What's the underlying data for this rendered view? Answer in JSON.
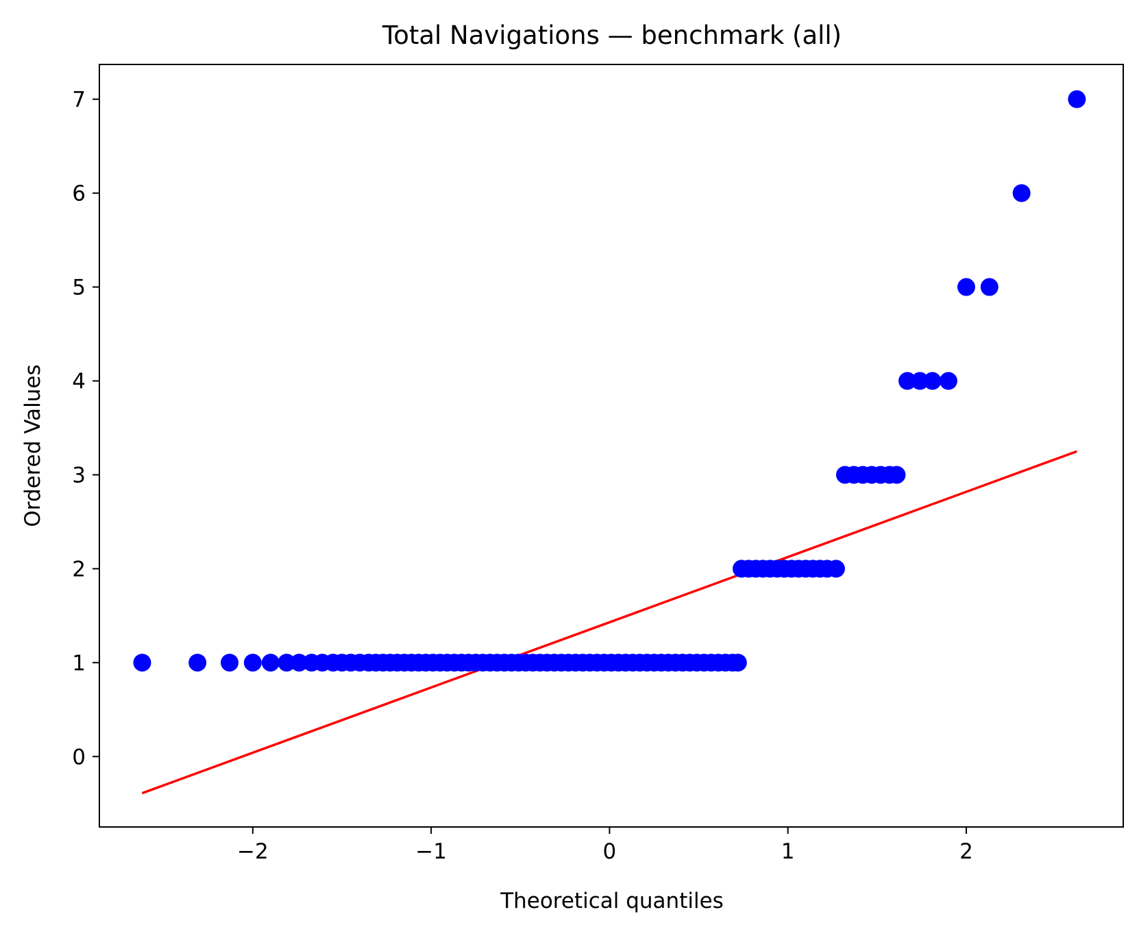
{
  "chart_data": {
    "type": "scatter",
    "title": "Total Navigations — benchmark (all)",
    "xlabel": "Theoretical quantiles",
    "ylabel": "Ordered Values",
    "xlim": [
      -2.86,
      2.88
    ],
    "ylim": [
      -0.75,
      7.37
    ],
    "x_ticks": [
      {
        "value": -2,
        "label": "−2"
      },
      {
        "value": -1,
        "label": "−1"
      },
      {
        "value": 0,
        "label": "0"
      },
      {
        "value": 1,
        "label": "1"
      },
      {
        "value": 2,
        "label": "2"
      }
    ],
    "y_ticks": [
      {
        "value": 0,
        "label": "0"
      },
      {
        "value": 1,
        "label": "1"
      },
      {
        "value": 2,
        "label": "2"
      },
      {
        "value": 3,
        "label": "3"
      },
      {
        "value": 4,
        "label": "4"
      },
      {
        "value": 5,
        "label": "5"
      },
      {
        "value": 6,
        "label": "6"
      },
      {
        "value": 7,
        "label": "7"
      }
    ],
    "grid": false,
    "series": [
      {
        "kind": "points",
        "color": "#0000ff",
        "points": [
          {
            "x": -2.62,
            "y": 1
          },
          {
            "x": -2.31,
            "y": 1
          },
          {
            "x": -2.13,
            "y": 1
          },
          {
            "x": -2.0,
            "y": 1
          },
          {
            "x": -1.9,
            "y": 1
          },
          {
            "x": -1.81,
            "y": 1
          },
          {
            "x": -1.74,
            "y": 1
          },
          {
            "x": -1.67,
            "y": 1
          },
          {
            "x": -1.61,
            "y": 1
          },
          {
            "x": -1.55,
            "y": 1
          },
          {
            "x": -1.5,
            "y": 1
          },
          {
            "x": -1.45,
            "y": 1
          },
          {
            "x": -1.4,
            "y": 1
          },
          {
            "x": -1.35,
            "y": 1
          },
          {
            "x": -1.31,
            "y": 1
          },
          {
            "x": -1.27,
            "y": 1
          },
          {
            "x": -1.23,
            "y": 1
          },
          {
            "x": -1.19,
            "y": 1
          },
          {
            "x": -1.15,
            "y": 1
          },
          {
            "x": -1.11,
            "y": 1
          },
          {
            "x": -1.07,
            "y": 1
          },
          {
            "x": -1.03,
            "y": 1
          },
          {
            "x": -0.99,
            "y": 1
          },
          {
            "x": -0.95,
            "y": 1
          },
          {
            "x": -0.91,
            "y": 1
          },
          {
            "x": -0.87,
            "y": 1
          },
          {
            "x": -0.83,
            "y": 1
          },
          {
            "x": -0.79,
            "y": 1
          },
          {
            "x": -0.75,
            "y": 1
          },
          {
            "x": -0.71,
            "y": 1
          },
          {
            "x": -0.67,
            "y": 1
          },
          {
            "x": -0.63,
            "y": 1
          },
          {
            "x": -0.59,
            "y": 1
          },
          {
            "x": -0.55,
            "y": 1
          },
          {
            "x": -0.51,
            "y": 1
          },
          {
            "x": -0.47,
            "y": 1
          },
          {
            "x": -0.43,
            "y": 1
          },
          {
            "x": -0.39,
            "y": 1
          },
          {
            "x": -0.35,
            "y": 1
          },
          {
            "x": -0.31,
            "y": 1
          },
          {
            "x": -0.27,
            "y": 1
          },
          {
            "x": -0.23,
            "y": 1
          },
          {
            "x": -0.19,
            "y": 1
          },
          {
            "x": -0.15,
            "y": 1
          },
          {
            "x": -0.11,
            "y": 1
          },
          {
            "x": -0.07,
            "y": 1
          },
          {
            "x": -0.03,
            "y": 1
          },
          {
            "x": 0.01,
            "y": 1
          },
          {
            "x": 0.05,
            "y": 1
          },
          {
            "x": 0.09,
            "y": 1
          },
          {
            "x": 0.13,
            "y": 1
          },
          {
            "x": 0.17,
            "y": 1
          },
          {
            "x": 0.21,
            "y": 1
          },
          {
            "x": 0.25,
            "y": 1
          },
          {
            "x": 0.29,
            "y": 1
          },
          {
            "x": 0.33,
            "y": 1
          },
          {
            "x": 0.37,
            "y": 1
          },
          {
            "x": 0.41,
            "y": 1
          },
          {
            "x": 0.45,
            "y": 1
          },
          {
            "x": 0.49,
            "y": 1
          },
          {
            "x": 0.53,
            "y": 1
          },
          {
            "x": 0.57,
            "y": 1
          },
          {
            "x": 0.61,
            "y": 1
          },
          {
            "x": 0.65,
            "y": 1
          },
          {
            "x": 0.69,
            "y": 1
          },
          {
            "x": 0.72,
            "y": 1
          },
          {
            "x": 0.74,
            "y": 2
          },
          {
            "x": 0.78,
            "y": 2
          },
          {
            "x": 0.82,
            "y": 2
          },
          {
            "x": 0.86,
            "y": 2
          },
          {
            "x": 0.9,
            "y": 2
          },
          {
            "x": 0.94,
            "y": 2
          },
          {
            "x": 0.98,
            "y": 2
          },
          {
            "x": 1.02,
            "y": 2
          },
          {
            "x": 1.06,
            "y": 2
          },
          {
            "x": 1.1,
            "y": 2
          },
          {
            "x": 1.14,
            "y": 2
          },
          {
            "x": 1.18,
            "y": 2
          },
          {
            "x": 1.22,
            "y": 2
          },
          {
            "x": 1.27,
            "y": 2
          },
          {
            "x": 1.32,
            "y": 3
          },
          {
            "x": 1.37,
            "y": 3
          },
          {
            "x": 1.42,
            "y": 3
          },
          {
            "x": 1.47,
            "y": 3
          },
          {
            "x": 1.52,
            "y": 3
          },
          {
            "x": 1.57,
            "y": 3
          },
          {
            "x": 1.61,
            "y": 3
          },
          {
            "x": 1.67,
            "y": 4
          },
          {
            "x": 1.74,
            "y": 4
          },
          {
            "x": 1.81,
            "y": 4
          },
          {
            "x": 1.9,
            "y": 4
          },
          {
            "x": 2.0,
            "y": 5
          },
          {
            "x": 2.13,
            "y": 5
          },
          {
            "x": 2.31,
            "y": 6
          },
          {
            "x": 2.62,
            "y": 7
          }
        ]
      },
      {
        "kind": "line",
        "color": "#ff0000",
        "points": [
          {
            "x": -2.62,
            "y": -0.39
          },
          {
            "x": 2.62,
            "y": 3.25
          }
        ]
      }
    ]
  }
}
